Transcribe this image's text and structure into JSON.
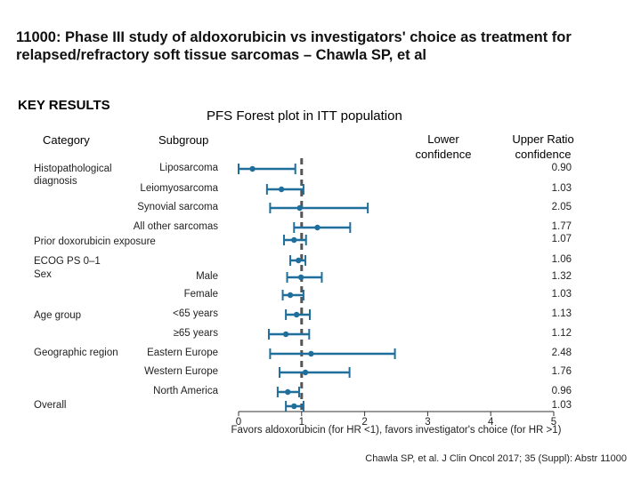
{
  "title": "11000: Phase III study of aldoxorubicin vs investigators' choice as treatment for relapsed/refractory soft tissue sarcomas – Chawla SP, et al",
  "section_label": "KEY RESULTS",
  "citation": "Chawla SP, et al. J Clin Oncol 2017; 35 (Suppl): Abstr 11000",
  "colors": {
    "series": "#1f6e9c",
    "reference_line": "#555555",
    "axis": "#333333"
  },
  "chart_data": {
    "type": "forest",
    "title": "PFS Forest plot in ITT population",
    "headers": {
      "category": "Category",
      "subgroup": "Subgroup",
      "lower": "Lower confidence",
      "upper": "Upper Ratio confidence"
    },
    "xlabel": "Favors aldoxorubicin (for HR <1), favors investigator's choice (for HR >1)",
    "xlim": [
      0,
      5
    ],
    "xticks": [
      "0",
      "1",
      "2",
      "3",
      "4",
      "5"
    ],
    "reference_line": 1,
    "categories": [
      {
        "label": "Histopathological diagnosis",
        "row": 0
      },
      {
        "label": "Prior doxorubicin exposure",
        "row": 4
      },
      {
        "label": "ECOG PS 0–1",
        "row": 5
      },
      {
        "label": "Sex",
        "row": 6
      },
      {
        "label": "Age group",
        "row": 8
      },
      {
        "label": "Geographic region",
        "row": 10
      },
      {
        "label": "Overall",
        "row": 13
      }
    ],
    "rows": [
      {
        "subgroup": "Liposarcoma",
        "hr": 0.22,
        "lower": 0.0,
        "upper": 0.9,
        "upper_label": "0.90"
      },
      {
        "subgroup": "Leiomyosarcoma",
        "hr": 0.68,
        "lower": 0.45,
        "upper": 1.03,
        "upper_label": "1.03"
      },
      {
        "subgroup": "Synovial sarcoma",
        "hr": 0.97,
        "lower": 0.5,
        "upper": 2.05,
        "upper_label": "2.05"
      },
      {
        "subgroup": "All other sarcomas",
        "hr": 1.25,
        "lower": 0.88,
        "upper": 1.77,
        "upper_label": "1.77"
      },
      {
        "subgroup": "",
        "hr": 0.88,
        "lower": 0.72,
        "upper": 1.07,
        "upper_label": "1.07"
      },
      {
        "subgroup": "",
        "hr": 0.95,
        "lower": 0.82,
        "upper": 1.06,
        "upper_label": "1.06"
      },
      {
        "subgroup": "Male",
        "hr": 0.99,
        "lower": 0.77,
        "upper": 1.32,
        "upper_label": "1.32"
      },
      {
        "subgroup": "Female",
        "hr": 0.82,
        "lower": 0.7,
        "upper": 1.03,
        "upper_label": "1.03"
      },
      {
        "subgroup": "<65 years",
        "hr": 0.92,
        "lower": 0.75,
        "upper": 1.13,
        "upper_label": "1.13"
      },
      {
        "subgroup": "≥65 years",
        "hr": 0.75,
        "lower": 0.48,
        "upper": 1.12,
        "upper_label": "1.12"
      },
      {
        "subgroup": "Eastern Europe",
        "hr": 1.15,
        "lower": 0.5,
        "upper": 2.48,
        "upper_label": "2.48"
      },
      {
        "subgroup": "Western Europe",
        "hr": 1.06,
        "lower": 0.65,
        "upper": 1.76,
        "upper_label": "1.76"
      },
      {
        "subgroup": "North America",
        "hr": 0.78,
        "lower": 0.62,
        "upper": 0.96,
        "upper_label": "0.96"
      },
      {
        "subgroup": "",
        "hr": 0.88,
        "lower": 0.75,
        "upper": 1.03,
        "upper_label": "1.03"
      }
    ]
  }
}
